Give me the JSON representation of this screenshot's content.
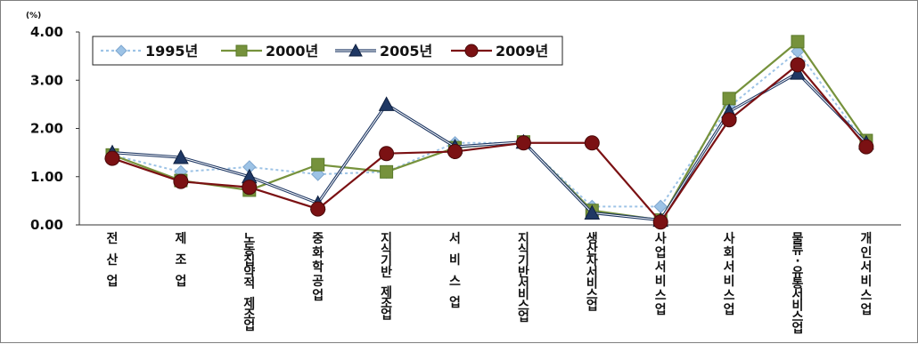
{
  "chart_data": {
    "type": "line",
    "y_unit": "(%)",
    "ylim": [
      0,
      4
    ],
    "y_ticks": [
      "0.00",
      "1.00",
      "2.00",
      "3.00",
      "4.00"
    ],
    "grid": false,
    "legend_position": "top-left",
    "categories": [
      "전산업",
      "제조업",
      "노동집약적 제조업",
      "중화학공업",
      "지식기반 제조업",
      "서비스업",
      "지식기반서비스업",
      "생산자서비스업",
      "사업서비스업",
      "사회서비스업",
      "물류·유통서비스업",
      "개인서비스업"
    ],
    "category_lines": [
      [
        "전",
        "산",
        "업"
      ],
      [
        "제",
        "조",
        "업"
      ],
      [
        "노",
        "동",
        "집",
        "약",
        "적",
        "",
        "제",
        "조",
        "업"
      ],
      [
        "중",
        "화",
        "학",
        "공",
        "업"
      ],
      [
        "지",
        "식",
        "기",
        "반",
        "",
        "제",
        "조",
        "업"
      ],
      [
        "서",
        "비",
        "스",
        "업"
      ],
      [
        "지",
        "식",
        "기",
        "반",
        "서",
        "비",
        "스",
        "업"
      ],
      [
        "생",
        "산",
        "자",
        "서",
        "비",
        "스",
        "업"
      ],
      [
        "사",
        "업",
        "서",
        "비",
        "스",
        "업"
      ],
      [
        "사",
        "회",
        "서",
        "비",
        "스",
        "업"
      ],
      [
        "물",
        "류",
        "·",
        "유",
        "통",
        "서",
        "비",
        "스",
        "업"
      ],
      [
        "개",
        "인",
        "서",
        "비",
        "스",
        "업"
      ]
    ],
    "series": [
      {
        "name": "1995년",
        "marker": "diamond",
        "color": "#9dc3e6",
        "dashed": true,
        "values": [
          1.45,
          1.1,
          1.2,
          1.05,
          1.1,
          1.7,
          1.7,
          0.38,
          0.38,
          2.45,
          3.6,
          1.65
        ]
      },
      {
        "name": "2000년",
        "marker": "square",
        "color": "#76923c",
        "dashed": false,
        "values": [
          1.45,
          0.92,
          0.72,
          1.25,
          1.1,
          1.6,
          1.72,
          0.3,
          0.1,
          2.62,
          3.8,
          1.75
        ]
      },
      {
        "name": "2005년",
        "marker": "triangle",
        "color": "#1f3864",
        "dashed": false,
        "values": [
          1.5,
          1.4,
          1.0,
          0.45,
          2.5,
          1.62,
          1.72,
          0.25,
          0.1,
          2.35,
          3.15,
          1.7
        ]
      },
      {
        "name": "2009년",
        "marker": "circle",
        "color": "#7b1113",
        "dashed": false,
        "values": [
          1.38,
          0.9,
          0.78,
          0.33,
          1.48,
          1.52,
          1.7,
          1.7,
          0.06,
          2.18,
          3.32,
          1.62
        ]
      }
    ]
  }
}
